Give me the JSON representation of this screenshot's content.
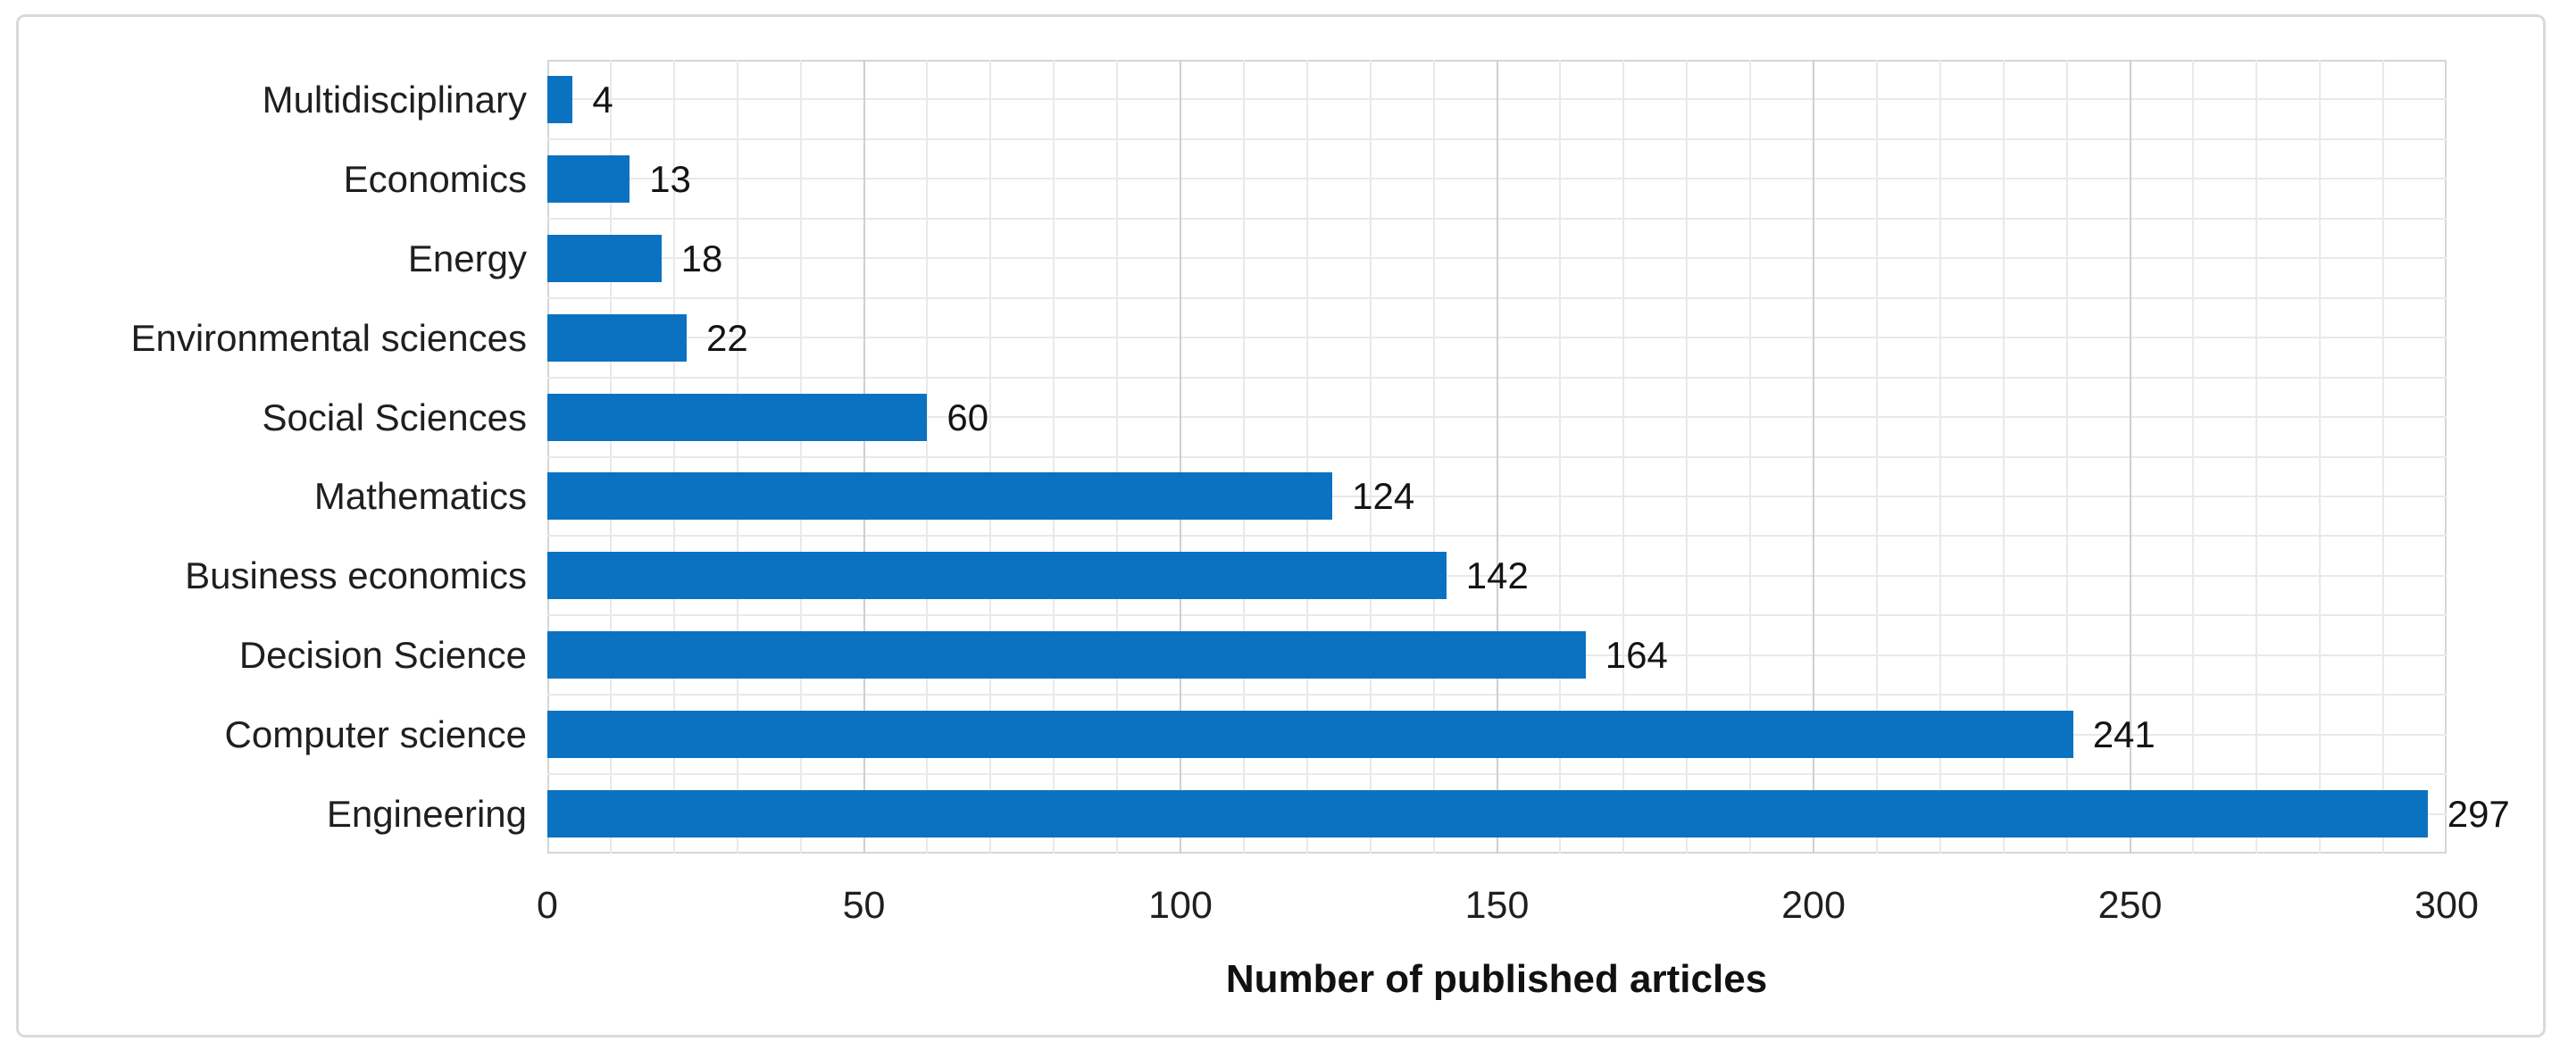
{
  "chart_data": {
    "type": "bar",
    "orientation": "horizontal",
    "categories": [
      "Multidisciplinary",
      "Economics",
      "Energy",
      "Environmental sciences",
      "Social Sciences",
      "Mathematics",
      "Business economics",
      "Decision Science",
      "Computer science",
      "Engineering"
    ],
    "values": [
      4,
      13,
      18,
      22,
      60,
      124,
      142,
      164,
      241,
      297
    ],
    "data_labels": [
      "4",
      "13",
      "18",
      "22",
      "60",
      "124",
      "142",
      "164",
      "241",
      "297"
    ],
    "title": "",
    "xlabel": "Number of published articles",
    "ylabel": "",
    "xlim": [
      0,
      300
    ],
    "xticks": [
      0,
      50,
      100,
      150,
      200,
      250,
      300
    ],
    "xtick_labels": [
      "0",
      "50",
      "100",
      "150",
      "200",
      "250",
      "300"
    ],
    "grid": "on",
    "grid_minor_interval_x": 10,
    "grid_major_interval_x": 50,
    "legend": "none",
    "colors": {
      "bar": "#0b72c2",
      "grid_minor": "#e9e9e9",
      "grid_major": "#cfcfcf",
      "plot_border": "#d6d6d6",
      "frame_border": "#dadada",
      "text": "#1f1f1f"
    }
  }
}
